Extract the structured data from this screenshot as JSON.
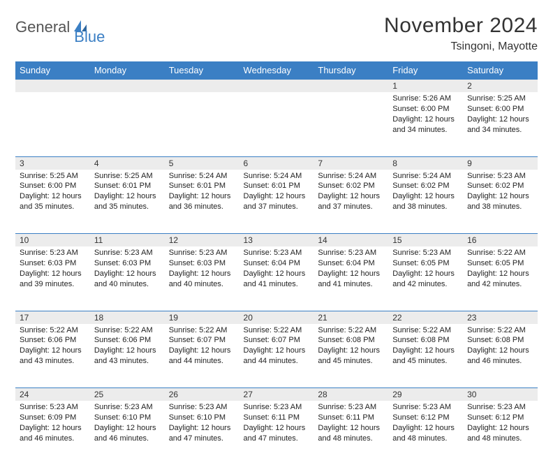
{
  "logo": {
    "part1": "General",
    "part2": "Blue"
  },
  "header": {
    "month_title": "November 2024",
    "location": "Tsingoni, Mayotte"
  },
  "weekdays": [
    "Sunday",
    "Monday",
    "Tuesday",
    "Wednesday",
    "Thursday",
    "Friday",
    "Saturday"
  ],
  "colors": {
    "brand_blue": "#3b7fc4",
    "header_row_bg": "#ececec",
    "text": "#222222"
  },
  "weeks": [
    {
      "nums": [
        "",
        "",
        "",
        "",
        "",
        "1",
        "2"
      ],
      "cells": [
        null,
        null,
        null,
        null,
        null,
        {
          "sunrise": "Sunrise: 5:26 AM",
          "sunset": "Sunset: 6:00 PM",
          "daylight": "Daylight: 12 hours and 34 minutes."
        },
        {
          "sunrise": "Sunrise: 5:25 AM",
          "sunset": "Sunset: 6:00 PM",
          "daylight": "Daylight: 12 hours and 34 minutes."
        }
      ]
    },
    {
      "nums": [
        "3",
        "4",
        "5",
        "6",
        "7",
        "8",
        "9"
      ],
      "cells": [
        {
          "sunrise": "Sunrise: 5:25 AM",
          "sunset": "Sunset: 6:00 PM",
          "daylight": "Daylight: 12 hours and 35 minutes."
        },
        {
          "sunrise": "Sunrise: 5:25 AM",
          "sunset": "Sunset: 6:01 PM",
          "daylight": "Daylight: 12 hours and 35 minutes."
        },
        {
          "sunrise": "Sunrise: 5:24 AM",
          "sunset": "Sunset: 6:01 PM",
          "daylight": "Daylight: 12 hours and 36 minutes."
        },
        {
          "sunrise": "Sunrise: 5:24 AM",
          "sunset": "Sunset: 6:01 PM",
          "daylight": "Daylight: 12 hours and 37 minutes."
        },
        {
          "sunrise": "Sunrise: 5:24 AM",
          "sunset": "Sunset: 6:02 PM",
          "daylight": "Daylight: 12 hours and 37 minutes."
        },
        {
          "sunrise": "Sunrise: 5:24 AM",
          "sunset": "Sunset: 6:02 PM",
          "daylight": "Daylight: 12 hours and 38 minutes."
        },
        {
          "sunrise": "Sunrise: 5:23 AM",
          "sunset": "Sunset: 6:02 PM",
          "daylight": "Daylight: 12 hours and 38 minutes."
        }
      ]
    },
    {
      "nums": [
        "10",
        "11",
        "12",
        "13",
        "14",
        "15",
        "16"
      ],
      "cells": [
        {
          "sunrise": "Sunrise: 5:23 AM",
          "sunset": "Sunset: 6:03 PM",
          "daylight": "Daylight: 12 hours and 39 minutes."
        },
        {
          "sunrise": "Sunrise: 5:23 AM",
          "sunset": "Sunset: 6:03 PM",
          "daylight": "Daylight: 12 hours and 40 minutes."
        },
        {
          "sunrise": "Sunrise: 5:23 AM",
          "sunset": "Sunset: 6:03 PM",
          "daylight": "Daylight: 12 hours and 40 minutes."
        },
        {
          "sunrise": "Sunrise: 5:23 AM",
          "sunset": "Sunset: 6:04 PM",
          "daylight": "Daylight: 12 hours and 41 minutes."
        },
        {
          "sunrise": "Sunrise: 5:23 AM",
          "sunset": "Sunset: 6:04 PM",
          "daylight": "Daylight: 12 hours and 41 minutes."
        },
        {
          "sunrise": "Sunrise: 5:23 AM",
          "sunset": "Sunset: 6:05 PM",
          "daylight": "Daylight: 12 hours and 42 minutes."
        },
        {
          "sunrise": "Sunrise: 5:22 AM",
          "sunset": "Sunset: 6:05 PM",
          "daylight": "Daylight: 12 hours and 42 minutes."
        }
      ]
    },
    {
      "nums": [
        "17",
        "18",
        "19",
        "20",
        "21",
        "22",
        "23"
      ],
      "cells": [
        {
          "sunrise": "Sunrise: 5:22 AM",
          "sunset": "Sunset: 6:06 PM",
          "daylight": "Daylight: 12 hours and 43 minutes."
        },
        {
          "sunrise": "Sunrise: 5:22 AM",
          "sunset": "Sunset: 6:06 PM",
          "daylight": "Daylight: 12 hours and 43 minutes."
        },
        {
          "sunrise": "Sunrise: 5:22 AM",
          "sunset": "Sunset: 6:07 PM",
          "daylight": "Daylight: 12 hours and 44 minutes."
        },
        {
          "sunrise": "Sunrise: 5:22 AM",
          "sunset": "Sunset: 6:07 PM",
          "daylight": "Daylight: 12 hours and 44 minutes."
        },
        {
          "sunrise": "Sunrise: 5:22 AM",
          "sunset": "Sunset: 6:08 PM",
          "daylight": "Daylight: 12 hours and 45 minutes."
        },
        {
          "sunrise": "Sunrise: 5:22 AM",
          "sunset": "Sunset: 6:08 PM",
          "daylight": "Daylight: 12 hours and 45 minutes."
        },
        {
          "sunrise": "Sunrise: 5:22 AM",
          "sunset": "Sunset: 6:08 PM",
          "daylight": "Daylight: 12 hours and 46 minutes."
        }
      ]
    },
    {
      "nums": [
        "24",
        "25",
        "26",
        "27",
        "28",
        "29",
        "30"
      ],
      "cells": [
        {
          "sunrise": "Sunrise: 5:23 AM",
          "sunset": "Sunset: 6:09 PM",
          "daylight": "Daylight: 12 hours and 46 minutes."
        },
        {
          "sunrise": "Sunrise: 5:23 AM",
          "sunset": "Sunset: 6:10 PM",
          "daylight": "Daylight: 12 hours and 46 minutes."
        },
        {
          "sunrise": "Sunrise: 5:23 AM",
          "sunset": "Sunset: 6:10 PM",
          "daylight": "Daylight: 12 hours and 47 minutes."
        },
        {
          "sunrise": "Sunrise: 5:23 AM",
          "sunset": "Sunset: 6:11 PM",
          "daylight": "Daylight: 12 hours and 47 minutes."
        },
        {
          "sunrise": "Sunrise: 5:23 AM",
          "sunset": "Sunset: 6:11 PM",
          "daylight": "Daylight: 12 hours and 48 minutes."
        },
        {
          "sunrise": "Sunrise: 5:23 AM",
          "sunset": "Sunset: 6:12 PM",
          "daylight": "Daylight: 12 hours and 48 minutes."
        },
        {
          "sunrise": "Sunrise: 5:23 AM",
          "sunset": "Sunset: 6:12 PM",
          "daylight": "Daylight: 12 hours and 48 minutes."
        }
      ]
    }
  ]
}
